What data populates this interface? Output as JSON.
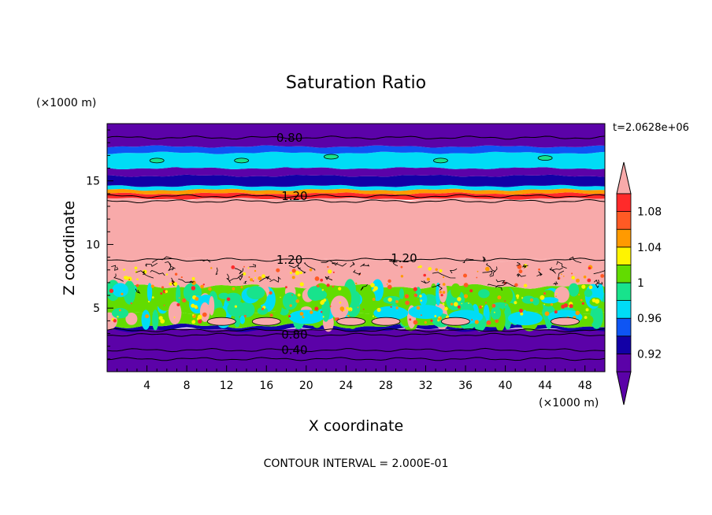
{
  "chart_data": {
    "type": "heatmap",
    "subtype": "filled-contour",
    "title": "Saturation Ratio",
    "xlabel": "X coordinate",
    "ylabel": "Z coordinate",
    "x_units": "(×1000 m)",
    "y_units": "(×1000 m)",
    "time_label": "t=2.0628e+06",
    "footer": "CONTOUR INTERVAL = 2.000E-01",
    "xlim": [
      0,
      50
    ],
    "ylim": [
      0,
      19.5
    ],
    "x_ticks": [
      4,
      8,
      12,
      16,
      20,
      24,
      28,
      32,
      36,
      40,
      44,
      48
    ],
    "x_tick_labels": [
      "4",
      "8",
      "12",
      "16",
      "20",
      "24",
      "28",
      "32",
      "36",
      "40",
      "44",
      "48"
    ],
    "y_ticks": [
      5,
      10,
      15
    ],
    "y_tick_labels": [
      "5",
      "10",
      "15"
    ],
    "colorbar": {
      "levels": [
        0.9,
        0.92,
        0.94,
        0.96,
        0.98,
        1.0,
        1.02,
        1.04,
        1.06,
        1.08,
        1.1
      ],
      "colors": [
        "#5b02a8",
        "#1200a6",
        "#0e55f4",
        "#00dcf6",
        "#18e38c",
        "#62dc00",
        "#fff400",
        "#ff9a00",
        "#ff5a24",
        "#ff2a2a",
        "#f8aaaa"
      ],
      "labels": [
        "0.92",
        "0.96",
        "1",
        "1.04",
        "1.08"
      ],
      "label_values": [
        0.92,
        0.96,
        1.0,
        1.04,
        1.08
      ],
      "extend": "both"
    },
    "contour_labels": [
      {
        "text": "0.80",
        "x": 17.0,
        "z": 18.4
      },
      {
        "text": "1.20",
        "x": 17.5,
        "z": 13.8
      },
      {
        "text": "1.20",
        "x": 17.0,
        "z": 8.8
      },
      {
        "text": "1.20",
        "x": 28.5,
        "z": 8.9
      },
      {
        "text": "0.80",
        "x": 17.5,
        "z": 2.9
      },
      {
        "text": "0.40",
        "x": 17.5,
        "z": 1.7
      }
    ],
    "bands": [
      {
        "z0": 0.0,
        "z1": 3.3,
        "value": 0.9
      },
      {
        "z0": 3.3,
        "z1": 3.6,
        "value": 0.92
      },
      {
        "z0": 3.6,
        "z1": 4.6,
        "value": 0.99
      },
      {
        "z0": 4.6,
        "z1": 6.7,
        "value": 1.0
      },
      {
        "z0": 6.7,
        "z1": 8.8,
        "value": 1.1
      },
      {
        "z0": 8.8,
        "z1": 13.6,
        "value": 1.1
      },
      {
        "z0": 13.6,
        "z1": 14.0,
        "value": 1.07
      },
      {
        "z0": 14.0,
        "z1": 14.3,
        "value": 1.03
      },
      {
        "z0": 14.3,
        "z1": 14.6,
        "value": 0.96
      },
      {
        "z0": 14.6,
        "z1": 15.4,
        "value": 0.92
      },
      {
        "z0": 15.4,
        "z1": 16.0,
        "value": 0.9
      },
      {
        "z0": 16.0,
        "z1": 17.2,
        "value": 0.96
      },
      {
        "z0": 17.2,
        "z1": 17.7,
        "value": 0.94
      },
      {
        "z0": 17.7,
        "z1": 19.5,
        "value": 0.9
      }
    ]
  }
}
